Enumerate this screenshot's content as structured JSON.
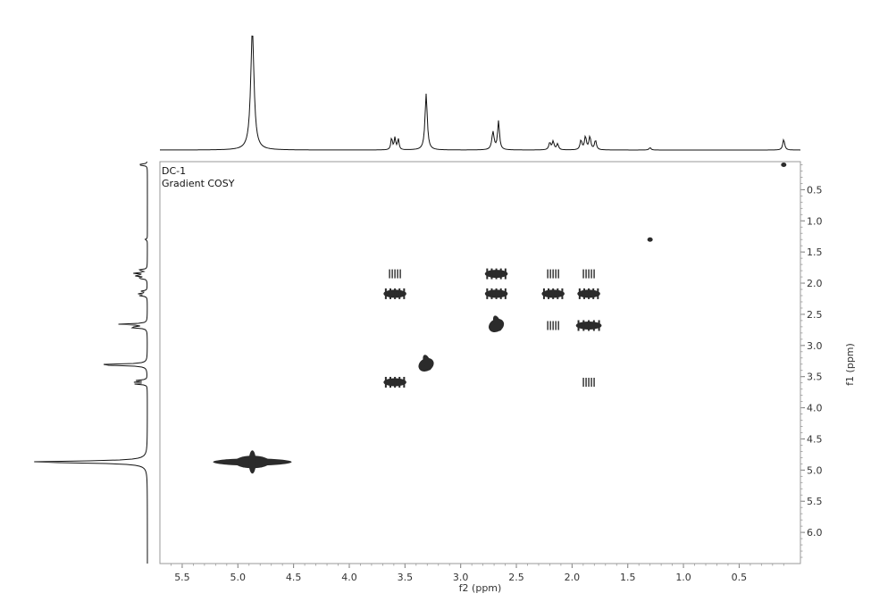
{
  "chart_data": {
    "type": "heatmap",
    "subtype": "2D NMR contour (gradient COSY)",
    "annotations": [
      "DC-1",
      "Gradient COSY"
    ],
    "xlabel": "f2 (ppm)",
    "ylabel": "f1 (ppm)",
    "xlim": [
      5.7,
      -0.05
    ],
    "ylim": [
      0.05,
      6.5
    ],
    "x_axis_reversed": true,
    "y_axis_downward_increasing": true,
    "x_ticks": [
      "5.5",
      "5.0",
      "4.5",
      "4.0",
      "3.5",
      "3.0",
      "2.5",
      "2.0",
      "1.5",
      "1.0",
      "0.5"
    ],
    "x_tick_values": [
      5.5,
      5.0,
      4.5,
      4.0,
      3.5,
      3.0,
      2.5,
      2.0,
      1.5,
      1.0,
      0.5
    ],
    "y_ticks": [
      "0.5",
      "1.0",
      "1.5",
      "2.0",
      "2.5",
      "3.0",
      "3.5",
      "4.0",
      "4.5",
      "5.0",
      "5.5",
      "6.0"
    ],
    "y_tick_values": [
      0.5,
      1.0,
      1.5,
      2.0,
      2.5,
      3.0,
      3.5,
      4.0,
      4.5,
      5.0,
      5.5,
      6.0
    ],
    "grid": false,
    "projection_peaks": [
      {
        "ppm": 4.87,
        "height": 1.0,
        "width": 0.018
      },
      {
        "ppm": 3.62,
        "height": 0.1,
        "width": 0.008
      },
      {
        "ppm": 3.59,
        "height": 0.1,
        "width": 0.008
      },
      {
        "ppm": 3.56,
        "height": 0.09,
        "width": 0.008
      },
      {
        "ppm": 3.31,
        "height": 0.47,
        "width": 0.012
      },
      {
        "ppm": 2.71,
        "height": 0.15,
        "width": 0.012
      },
      {
        "ppm": 2.66,
        "height": 0.24,
        "width": 0.01
      },
      {
        "ppm": 2.2,
        "height": 0.06,
        "width": 0.01
      },
      {
        "ppm": 2.17,
        "height": 0.07,
        "width": 0.01
      },
      {
        "ppm": 2.13,
        "height": 0.05,
        "width": 0.01
      },
      {
        "ppm": 1.92,
        "height": 0.08,
        "width": 0.01
      },
      {
        "ppm": 1.88,
        "height": 0.11,
        "width": 0.01
      },
      {
        "ppm": 1.84,
        "height": 0.11,
        "width": 0.01
      },
      {
        "ppm": 1.79,
        "height": 0.08,
        "width": 0.01
      },
      {
        "ppm": 1.3,
        "height": 0.02,
        "width": 0.01
      },
      {
        "ppm": 0.1,
        "height": 0.09,
        "width": 0.01
      }
    ],
    "cross_peaks": [
      {
        "f2": 4.87,
        "f1": 4.87,
        "intensity": 1.0,
        "shape": "diagonal-large"
      },
      {
        "f2": 3.31,
        "f1": 3.31,
        "intensity": 0.8,
        "shape": "diagonal"
      },
      {
        "f2": 2.68,
        "f1": 2.68,
        "intensity": 0.8,
        "shape": "diagonal"
      },
      {
        "f2": 1.85,
        "f1": 2.68,
        "intensity": 0.8,
        "shape": "blob"
      },
      {
        "f2": 2.68,
        "f1": 1.85,
        "intensity": 0.6,
        "shape": "blob"
      },
      {
        "f2": 2.68,
        "f1": 2.17,
        "intensity": 0.6,
        "shape": "blob"
      },
      {
        "f2": 3.59,
        "f1": 2.17,
        "intensity": 0.6,
        "shape": "blob"
      },
      {
        "f2": 3.59,
        "f1": 1.85,
        "intensity": 0.4,
        "shape": "hash"
      },
      {
        "f2": 3.59,
        "f1": 3.59,
        "intensity": 0.6,
        "shape": "blob"
      },
      {
        "f2": 2.17,
        "f1": 2.17,
        "intensity": 0.6,
        "shape": "blob"
      },
      {
        "f2": 1.85,
        "f1": 2.17,
        "intensity": 0.6,
        "shape": "blob"
      },
      {
        "f2": 2.17,
        "f1": 1.85,
        "intensity": 0.3,
        "shape": "hash"
      },
      {
        "f2": 1.85,
        "f1": 1.85,
        "intensity": 0.3,
        "shape": "hash"
      },
      {
        "f2": 2.17,
        "f1": 2.68,
        "intensity": 0.4,
        "shape": "hash"
      },
      {
        "f2": 1.85,
        "f1": 3.59,
        "intensity": 0.3,
        "shape": "hash"
      },
      {
        "f2": 1.3,
        "f1": 1.3,
        "intensity": 0.3,
        "shape": "dot"
      },
      {
        "f2": 0.1,
        "f1": 0.1,
        "intensity": 0.4,
        "shape": "dot"
      }
    ]
  }
}
